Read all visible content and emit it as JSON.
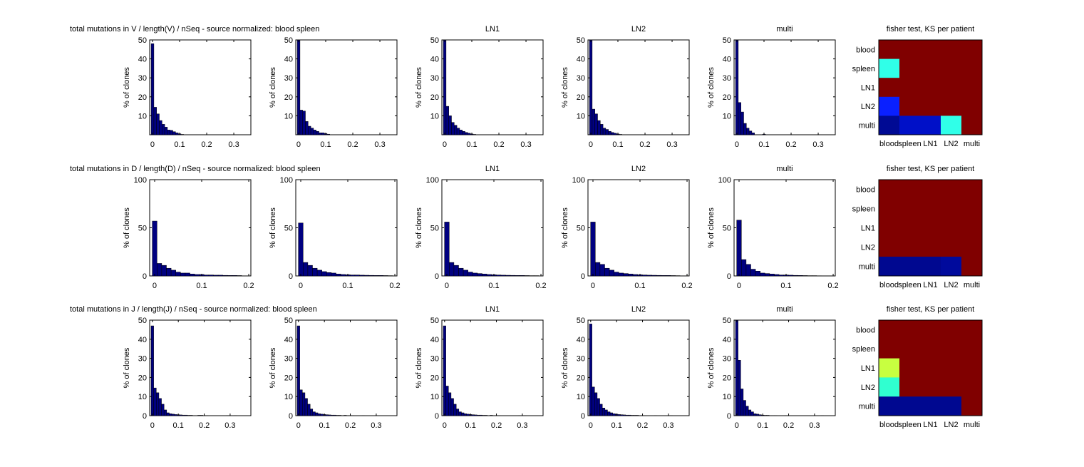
{
  "chart_data": [
    {
      "type": "bar",
      "row": 0,
      "title": "total mutations in V / length(V) / nSeq - source normalized: blood spleen",
      "ylabel": "% of clones",
      "xlim": [
        -0.0105,
        0.363
      ],
      "ylim": [
        0,
        50
      ],
      "yticks": [
        10,
        20,
        30,
        40,
        50
      ],
      "xticks": [
        0,
        0.1,
        0.2,
        0.3
      ],
      "xtick_labels": [
        "0",
        "0.1",
        "0.2",
        "0.3"
      ],
      "bin_width": 0.01,
      "panels": [
        {
          "title": "",
          "values": [
            48,
            14.5,
            11,
            7.5,
            5.5,
            4,
            2.5,
            2.3,
            1.6,
            1,
            0.5,
            0.2
          ]
        },
        {
          "title": "",
          "values": [
            50,
            13,
            12.5,
            7,
            4.5,
            3.5,
            2.5,
            1.8,
            1,
            1,
            0.6,
            0.3
          ]
        },
        {
          "title": "LN1",
          "values": [
            50,
            15,
            10,
            6.5,
            5,
            3.5,
            2.5,
            1.8,
            1.2,
            0.8,
            0.4,
            0.2
          ]
        },
        {
          "title": "LN2",
          "values": [
            50,
            13.5,
            11,
            7.5,
            5.5,
            3.5,
            2.8,
            1.8,
            1.2,
            0.8,
            0.4,
            0.2
          ]
        },
        {
          "title": "multi",
          "values": [
            50,
            17,
            12,
            6,
            3.5,
            2,
            1,
            0,
            0,
            0,
            0.3,
            0
          ]
        }
      ]
    },
    {
      "type": "bar",
      "row": 1,
      "title": "total mutations in D / length(D) / nSeq - source normalized: blood spleen",
      "ylabel": "% of clones",
      "xlim": [
        -0.0106,
        0.2045
      ],
      "ylim": [
        0,
        100
      ],
      "yticks": [
        0,
        50,
        100
      ],
      "xticks": [
        0,
        0.1,
        0.2
      ],
      "xtick_labels": [
        "0",
        "0.1",
        "0.2"
      ],
      "bin_width": 0.01,
      "panels": [
        {
          "title": "",
          "values": [
            57,
            13,
            11,
            8,
            6,
            4,
            3,
            3,
            2,
            1.5,
            1.5,
            1,
            1,
            0.8,
            0.8,
            0.6,
            0.5,
            0.5,
            0.4
          ]
        },
        {
          "title": "",
          "values": [
            55,
            14,
            11,
            8,
            6,
            4.5,
            3.5,
            3,
            2,
            1.5,
            1.2,
            1,
            1,
            0.8,
            0.7,
            0.6,
            0.5,
            0.5,
            0.4,
            0.3
          ]
        },
        {
          "title": "LN1",
          "values": [
            56,
            14,
            11,
            8,
            6,
            4,
            3,
            2.5,
            2,
            1.5,
            1.2,
            1,
            0.8,
            0.7,
            0.6,
            0.5,
            0.5,
            0.4,
            0.3,
            0.3
          ]
        },
        {
          "title": "LN2",
          "values": [
            56,
            14,
            12,
            8,
            6,
            4,
            3,
            2.5,
            2,
            1.5,
            1.2,
            1,
            0.8,
            0.7,
            0.6,
            0.5,
            0.5,
            0.4,
            0.3
          ]
        },
        {
          "title": "multi",
          "values": [
            58,
            17,
            12,
            7,
            5,
            3,
            2.5,
            2,
            1.5,
            1,
            1,
            0.8,
            0.6,
            0.5,
            0.4,
            0.3,
            0.3,
            0.2
          ]
        }
      ]
    },
    {
      "type": "bar",
      "row": 2,
      "title": "total mutations in J / length(J) / nSeq - source normalized: blood spleen",
      "ylabel": "% of clones",
      "xlim": [
        -0.0105,
        0.38
      ],
      "ylim": [
        0,
        50
      ],
      "yticks": [
        0,
        10,
        20,
        30,
        40,
        50
      ],
      "xticks": [
        0,
        0.1,
        0.2,
        0.3
      ],
      "xtick_labels": [
        "0",
        "0.1",
        "0.2",
        "0.3"
      ],
      "bin_width": 0.01,
      "panels": [
        {
          "title": "",
          "values": [
            47,
            14.5,
            12,
            9,
            6,
            3,
            1.5,
            1,
            0.8,
            0.6,
            0.5,
            0.4,
            0.3,
            0.3,
            0.2,
            0.2,
            0.1,
            0.1,
            0.2,
            0.2,
            0.1,
            0.1,
            0,
            0,
            0,
            0,
            0,
            0,
            0,
            0.1,
            0,
            0,
            0.1
          ]
        },
        {
          "title": "",
          "values": [
            47,
            13.5,
            12,
            9,
            6,
            3.5,
            2,
            1.5,
            1,
            0.8,
            0.6,
            0.5,
            0.4,
            0.3,
            0.3,
            0.2,
            0.2,
            0.1,
            0.2,
            0.1,
            0.1,
            0.1,
            0,
            0,
            0,
            0.1
          ]
        },
        {
          "title": "LN1",
          "values": [
            47,
            15.5,
            12,
            9,
            6,
            3.5,
            2,
            1.5,
            1,
            0.8,
            0.6,
            0.5,
            0.4,
            0.3,
            0.3,
            0.2,
            0.2,
            0.1,
            0.2,
            0.1,
            0.1,
            0.1,
            0,
            0,
            0,
            0,
            0,
            0,
            0,
            0.1,
            0,
            0.1
          ]
        },
        {
          "title": "LN2",
          "values": [
            48,
            15,
            12,
            9,
            6,
            4,
            3,
            2,
            1.5,
            1,
            0.8,
            0.6,
            0.5,
            0.4,
            0.3,
            0.3,
            0.2,
            0.2,
            0.2,
            0.1,
            0.1,
            0.1,
            0,
            0,
            0,
            0.1,
            0,
            0,
            0,
            0,
            0,
            0.1
          ]
        },
        {
          "title": "multi",
          "values": [
            50,
            29,
            14,
            8,
            5,
            3,
            2,
            1,
            0.8,
            0.5,
            0.3,
            0.2,
            0.2,
            0.1,
            0.1,
            0.1,
            0,
            0,
            0,
            0.1,
            0,
            0,
            0,
            0,
            0,
            0,
            0,
            0,
            0,
            0,
            0,
            0,
            0,
            0.1
          ]
        }
      ]
    }
  ],
  "heatmaps": [
    {
      "title": "fisher test, KS per patient",
      "row_labels": [
        "blood",
        "spleen",
        "LN1",
        "LN2",
        "multi"
      ],
      "col_labels": [
        "blood",
        "spleen",
        "LN1",
        "LN2",
        "multi"
      ],
      "colors": [
        [
          "#800000",
          "#800000",
          "#800000",
          "#800000",
          "#800000"
        ],
        [
          "#30ffe8",
          "#800000",
          "#800000",
          "#800000",
          "#800000"
        ],
        [
          "#800000",
          "#800000",
          "#800000",
          "#800000",
          "#800000"
        ],
        [
          "#0a20ff",
          "#800000",
          "#800000",
          "#800000",
          "#800000"
        ],
        [
          "#000a94",
          "#0010c8",
          "#0010c8",
          "#30ffe8",
          "#800000"
        ]
      ]
    },
    {
      "title": "fisher test, KS per patient",
      "row_labels": [
        "blood",
        "spleen",
        "LN1",
        "LN2",
        "multi"
      ],
      "col_labels": [
        "blood",
        "spleen",
        "LN1",
        "LN2",
        "multi"
      ],
      "colors": [
        [
          "#800000",
          "#800000",
          "#800000",
          "#800000",
          "#800000"
        ],
        [
          "#800000",
          "#800000",
          "#800000",
          "#800000",
          "#800000"
        ],
        [
          "#800000",
          "#800000",
          "#800000",
          "#800000",
          "#800000"
        ],
        [
          "#800000",
          "#800000",
          "#800000",
          "#800000",
          "#800000"
        ],
        [
          "#000890",
          "#000890",
          "#000890",
          "#000a9c",
          "#800000"
        ]
      ]
    },
    {
      "title": "fisher test, KS per patient",
      "row_labels": [
        "blood",
        "spleen",
        "LN1",
        "LN2",
        "multi"
      ],
      "col_labels": [
        "blood",
        "spleen",
        "LN1",
        "LN2",
        "multi"
      ],
      "colors": [
        [
          "#800000",
          "#800000",
          "#800000",
          "#800000",
          "#800000"
        ],
        [
          "#800000",
          "#800000",
          "#800000",
          "#800000",
          "#800000"
        ],
        [
          "#c8ff40",
          "#800000",
          "#800000",
          "#800000",
          "#800000"
        ],
        [
          "#30ffd0",
          "#800000",
          "#800000",
          "#800000",
          "#800000"
        ],
        [
          "#000890",
          "#000890",
          "#000890",
          "#000890",
          "#800000"
        ]
      ]
    }
  ],
  "colors": {
    "bar_fill": "#000080",
    "bar_edge": "#000000"
  }
}
